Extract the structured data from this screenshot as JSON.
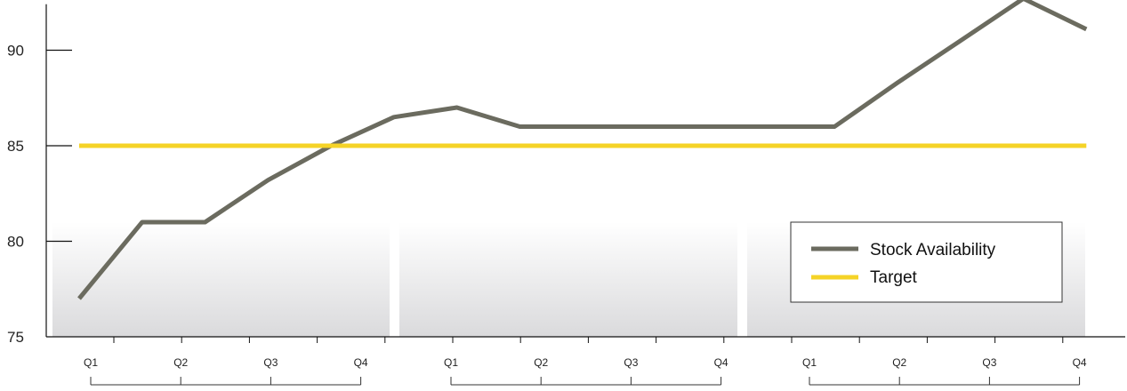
{
  "chart_data": {
    "type": "line",
    "title": "",
    "xlabel": "",
    "ylabel": "",
    "ylim": [
      75,
      92.5
    ],
    "y_ticks": [
      75,
      80,
      85,
      90
    ],
    "x": [
      "Q1",
      "Q2",
      "Q3",
      "Q4",
      "Q1",
      "Q2",
      "Q3",
      "Q4",
      "Q1",
      "Q2",
      "Q3",
      "Q4"
    ],
    "x_group_count": 3,
    "series": [
      {
        "name": "Stock Availability",
        "color": "#6b6b5f",
        "x": [
          0.0,
          0.7,
          1.4,
          2.1,
          2.8,
          3.5,
          4.2,
          4.9,
          5.6,
          6.3,
          7.0,
          7.7,
          8.4,
          9.1,
          9.8,
          10.5,
          11.2
        ],
        "values": [
          77.0,
          81.0,
          81.0,
          83.2,
          85.0,
          86.5,
          87.0,
          86.0,
          86.0,
          86.0,
          86.0,
          86.0,
          86.0,
          88.3,
          90.5,
          92.7,
          91.1
        ]
      },
      {
        "name": "Target",
        "color": "#f5d327",
        "x": [
          0.0,
          11.2
        ],
        "values": [
          85.0,
          85.0
        ]
      }
    ],
    "legend_position": "bottom-right",
    "grid": false,
    "background_bands": true
  }
}
